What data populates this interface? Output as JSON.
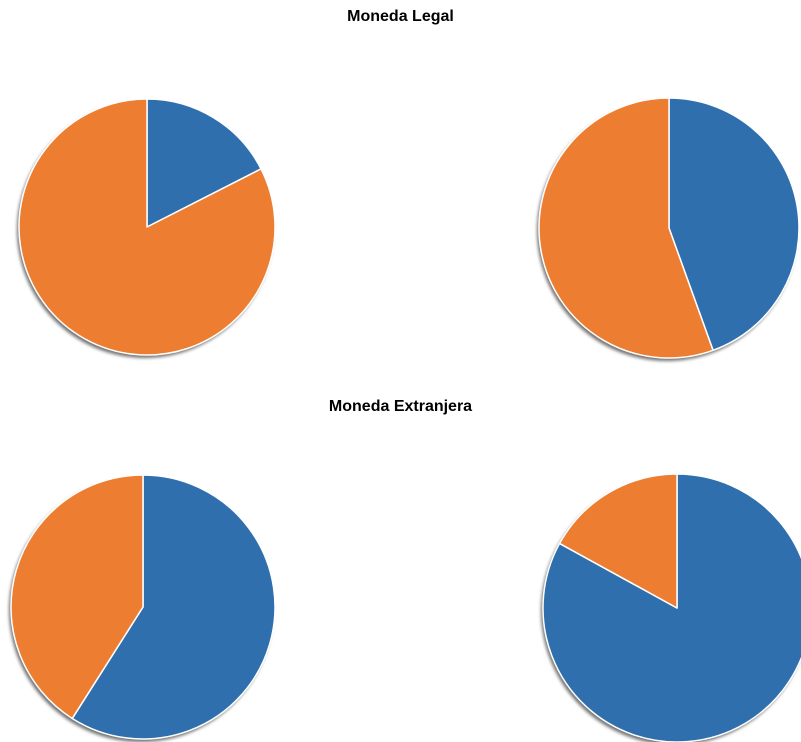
{
  "sections": {
    "legal_title": "Moneda Legal",
    "extranjera_title": "Moneda Extranjera"
  },
  "colors": {
    "blue": "#2f6fae",
    "orange": "#ed7d31",
    "edge": "#ffffff"
  },
  "chart_data": [
    {
      "type": "pie",
      "title": "Moneda Legal",
      "slices": [
        {
          "color": "blue",
          "value": 17.5
        },
        {
          "color": "orange",
          "value": 82.5
        }
      ]
    },
    {
      "type": "pie",
      "title": "Moneda Legal",
      "slices": [
        {
          "color": "blue",
          "value": 44.5
        },
        {
          "color": "orange",
          "value": 55.5
        }
      ]
    },
    {
      "type": "pie",
      "title": "Moneda Extranjera",
      "slices": [
        {
          "color": "blue",
          "value": 59
        },
        {
          "color": "orange",
          "value": 41
        }
      ]
    },
    {
      "type": "pie",
      "title": "Moneda Extranjera",
      "slices": [
        {
          "color": "blue",
          "value": 83
        },
        {
          "color": "orange",
          "value": 17
        }
      ]
    }
  ]
}
